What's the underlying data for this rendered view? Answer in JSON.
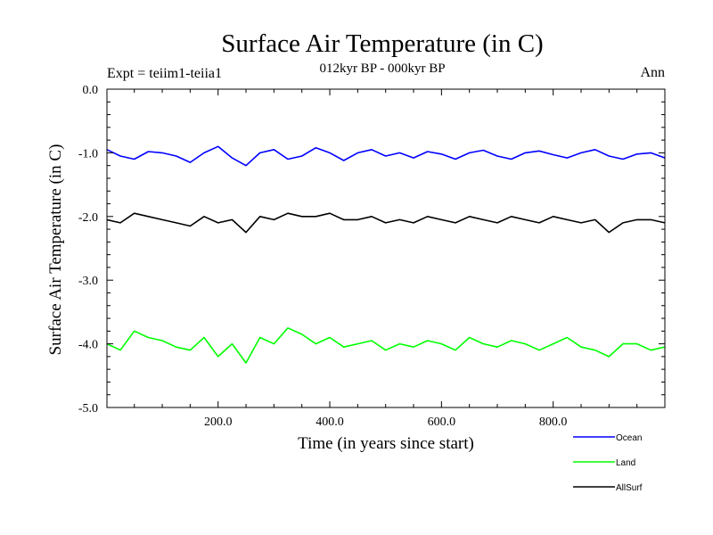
{
  "header": {
    "title": "Surface Air Temperature (in C)",
    "subtitle": "012kyr BP - 000kyr BP",
    "expt_label": "Expt = teiim1-teiia1",
    "season": "Ann"
  },
  "chart_data": {
    "type": "line",
    "title": "Surface Air Temperature (in C)",
    "xlabel": "Time (in years since start)",
    "ylabel": "Surface Air Temperature (in C)",
    "xlim": [
      1,
      1000
    ],
    "ylim": [
      -5.0,
      0.0
    ],
    "x_ticks": [
      200,
      400,
      600,
      800
    ],
    "x_tick_labels": [
      "200.0",
      "400.0",
      "600.0",
      "800.0"
    ],
    "y_ticks": [
      0,
      -1,
      -2,
      -3,
      -4,
      -5
    ],
    "y_tick_labels": [
      "0.0",
      "-1.0",
      "-2.0",
      "-3.0",
      "-4.0",
      "-5.0"
    ],
    "grid": false,
    "legend_position": "bottom-right, outside plot",
    "series": [
      {
        "name": "Ocean",
        "color": "#0000ff",
        "x": [
          1,
          25,
          50,
          75,
          100,
          125,
          150,
          175,
          200,
          225,
          250,
          275,
          300,
          325,
          350,
          375,
          400,
          425,
          450,
          475,
          500,
          525,
          550,
          575,
          600,
          625,
          650,
          675,
          700,
          725,
          750,
          775,
          800,
          825,
          850,
          875,
          900,
          925,
          950,
          975,
          1000
        ],
        "y": [
          -0.95,
          -1.05,
          -1.1,
          -0.98,
          -1.0,
          -1.05,
          -1.15,
          -1.0,
          -0.9,
          -1.08,
          -1.2,
          -1.0,
          -0.95,
          -1.1,
          -1.05,
          -0.92,
          -1.0,
          -1.12,
          -1.0,
          -0.95,
          -1.05,
          -1.0,
          -1.08,
          -0.98,
          -1.02,
          -1.1,
          -1.0,
          -0.96,
          -1.05,
          -1.1,
          -1.0,
          -0.97,
          -1.03,
          -1.08,
          -1.0,
          -0.95,
          -1.05,
          -1.1,
          -1.02,
          -1.0,
          -1.08
        ]
      },
      {
        "name": "Land",
        "color": "#00ff00",
        "x": [
          1,
          25,
          50,
          75,
          100,
          125,
          150,
          175,
          200,
          225,
          250,
          275,
          300,
          325,
          350,
          375,
          400,
          425,
          450,
          475,
          500,
          525,
          550,
          575,
          600,
          625,
          650,
          675,
          700,
          725,
          750,
          775,
          800,
          825,
          850,
          875,
          900,
          925,
          950,
          975,
          1000
        ],
        "y": [
          -4.0,
          -4.1,
          -3.8,
          -3.9,
          -3.95,
          -4.05,
          -4.1,
          -3.9,
          -4.2,
          -4.0,
          -4.3,
          -3.9,
          -4.0,
          -3.75,
          -3.85,
          -4.0,
          -3.9,
          -4.05,
          -4.0,
          -3.95,
          -4.1,
          -4.0,
          -4.05,
          -3.95,
          -4.0,
          -4.1,
          -3.9,
          -4.0,
          -4.05,
          -3.95,
          -4.0,
          -4.1,
          -4.0,
          -3.9,
          -4.05,
          -4.1,
          -4.2,
          -4.0,
          -4.0,
          -4.1,
          -4.05
        ]
      },
      {
        "name": "AllSurf",
        "color": "#000000",
        "x": [
          1,
          25,
          50,
          75,
          100,
          125,
          150,
          175,
          200,
          225,
          250,
          275,
          300,
          325,
          350,
          375,
          400,
          425,
          450,
          475,
          500,
          525,
          550,
          575,
          600,
          625,
          650,
          675,
          700,
          725,
          750,
          775,
          800,
          825,
          850,
          875,
          900,
          925,
          950,
          975,
          1000
        ],
        "y": [
          -2.05,
          -2.1,
          -1.95,
          -2.0,
          -2.05,
          -2.1,
          -2.15,
          -2.0,
          -2.1,
          -2.05,
          -2.25,
          -2.0,
          -2.05,
          -1.95,
          -2.0,
          -2.0,
          -1.95,
          -2.05,
          -2.05,
          -2.0,
          -2.1,
          -2.05,
          -2.1,
          -2.0,
          -2.05,
          -2.1,
          -2.0,
          -2.05,
          -2.1,
          -2.0,
          -2.05,
          -2.1,
          -2.0,
          -2.05,
          -2.1,
          -2.05,
          -2.25,
          -2.1,
          -2.05,
          -2.05,
          -2.1
        ]
      }
    ]
  }
}
